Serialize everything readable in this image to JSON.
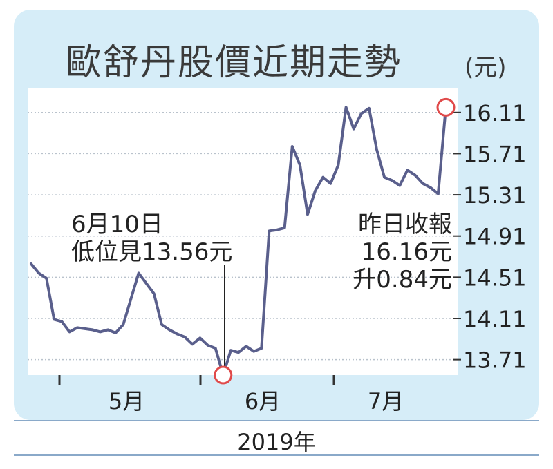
{
  "chart_data": {
    "type": "line",
    "title": "歐舒丹股價近期走勢",
    "unit": "(元)",
    "xlabel": "2019年",
    "month_labels": [
      "5月",
      "6月",
      "7月"
    ],
    "yticks": [
      "16.11",
      "15.71",
      "15.31",
      "14.91",
      "14.51",
      "14.11",
      "13.71"
    ],
    "ylim": [
      13.56,
      16.35
    ],
    "grid": true,
    "series": [
      {
        "color": "#5a5f8c",
        "values": [
          14.64,
          14.55,
          14.5,
          14.1,
          14.08,
          13.98,
          14.02,
          14.01,
          14.0,
          13.98,
          14.0,
          13.97,
          14.05,
          14.3,
          14.55,
          14.45,
          14.35,
          14.05,
          14.0,
          13.96,
          13.93,
          13.86,
          13.92,
          13.85,
          13.82,
          13.56,
          13.8,
          13.78,
          13.84,
          13.79,
          13.82,
          14.96,
          14.97,
          14.99,
          15.78,
          15.6,
          15.12,
          15.35,
          15.48,
          15.42,
          15.6,
          16.16,
          15.95,
          16.1,
          16.15,
          15.75,
          15.48,
          15.45,
          15.4,
          15.55,
          15.5,
          15.42,
          15.38,
          15.32,
          16.16
        ]
      }
    ],
    "markers": [
      {
        "index": 25,
        "value": 13.56,
        "color": "#e04a4a"
      },
      {
        "index": 54,
        "value": 16.16,
        "color": "#e04a4a"
      }
    ],
    "annotations": [
      {
        "line1": "6月10日",
        "line2": "低位見13.56元"
      },
      {
        "line1": "昨日收報",
        "line2": "16.16元",
        "line3": "升0.84元"
      }
    ]
  }
}
